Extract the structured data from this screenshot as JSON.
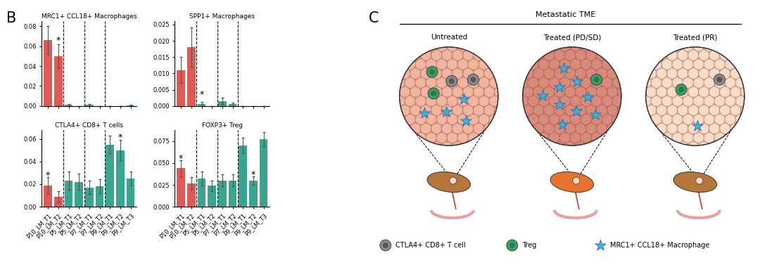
{
  "panel_labels": [
    "B",
    "C"
  ],
  "chart_data": [
    {
      "type": "bar",
      "title": "MRC1+ CCL18+ Macrophages",
      "categories": [
        "P10_LM_T1",
        "P10_LM_T2",
        "P5_LM_T1",
        "P5_LM_T2",
        "P7_LM_T1",
        "P7_LM_T2",
        "P9_LM_T1",
        "P9_LM_T2",
        "P9_LM_T3"
      ],
      "values": [
        0.066,
        0.05,
        0.001,
        0.0,
        0.001,
        0.0,
        0.0,
        0.0,
        0.0005
      ],
      "errors": [
        0.014,
        0.012,
        0.0008,
        0.0,
        0.0008,
        0.0,
        0.0,
        0.0,
        0.0005
      ],
      "colors": [
        "#e05a55",
        "#e05a55",
        "#3aa58f",
        "#3aa58f",
        "#3aa58f",
        "#3aa58f",
        "#3aa58f",
        "#3aa58f",
        "#3aa58f"
      ],
      "ylim": [
        0,
        0.085
      ],
      "yticks": [
        {
          "value": 0,
          "label": "0.00"
        },
        {
          "value": 0.02,
          "label": "0.02"
        },
        {
          "value": 0.04,
          "label": "0.04"
        },
        {
          "value": 0.06,
          "label": "0.06"
        },
        {
          "value": 0.08,
          "label": "0.08"
        }
      ],
      "annotations": [
        {
          "text": "*",
          "category": "P10_LM_T2",
          "y": 0.066
        }
      ],
      "tick_labels": "y"
    },
    {
      "type": "bar",
      "title": "SPP1+ Macrophages",
      "categories": [
        "P10_LM_T1",
        "P10_LM_T2",
        "P5_LM_T1",
        "P5_LM_T2",
        "P7_LM_T1",
        "P7_LM_T2",
        "P9_LM_T1",
        "P9_LM_T2",
        "P9_LM_T3"
      ],
      "values": [
        0.011,
        0.018,
        0.0005,
        0.0,
        0.0015,
        0.0005,
        0.0,
        0.0,
        0.0
      ],
      "errors": [
        0.004,
        0.006,
        0.0008,
        0.0,
        0.001,
        0.0005,
        0.0,
        0.0,
        0.0
      ],
      "colors": [
        "#e05a55",
        "#e05a55",
        "#3aa58f",
        "#3aa58f",
        "#3aa58f",
        "#3aa58f",
        "#3aa58f",
        "#3aa58f",
        "#3aa58f"
      ],
      "ylim": [
        0,
        0.026
      ],
      "yticks": [
        {
          "value": 0,
          "label": "0.000"
        },
        {
          "value": 0.005,
          "label": "0.005"
        },
        {
          "value": 0.01,
          "label": "0.010"
        },
        {
          "value": 0.015,
          "label": "0.015"
        },
        {
          "value": 0.02,
          "label": "0.020"
        },
        {
          "value": 0.025,
          "label": "0.025"
        }
      ],
      "annotations": [
        {
          "text": "*",
          "category": "P5_LM_T1",
          "y": 0.0035
        }
      ],
      "tick_labels": "y"
    },
    {
      "type": "bar",
      "title": "CTLA4+ CD8+ T cells",
      "categories": [
        "P10_LM_T1",
        "P10_LM_T2",
        "P5_LM_T1",
        "P5_LM_T2",
        "P7_LM_T1",
        "P7_LM_T2",
        "P9_LM_T1",
        "P9_LM_T2",
        "P9_LM_T3"
      ],
      "values": [
        0.019,
        0.009,
        0.023,
        0.022,
        0.017,
        0.018,
        0.055,
        0.05,
        0.025
      ],
      "errors": [
        0.007,
        0.005,
        0.008,
        0.007,
        0.006,
        0.006,
        0.008,
        0.009,
        0.006
      ],
      "colors": [
        "#e05a55",
        "#e05a55",
        "#3aa58f",
        "#3aa58f",
        "#3aa58f",
        "#3aa58f",
        "#3aa58f",
        "#3aa58f",
        "#3aa58f"
      ],
      "ylim": [
        0,
        0.068
      ],
      "yticks": [
        {
          "value": 0,
          "label": "0.00"
        },
        {
          "value": 0.02,
          "label": "0.02"
        },
        {
          "value": 0.04,
          "label": "0.04"
        },
        {
          "value": 0.06,
          "label": "0.06"
        }
      ],
      "annotations": [
        {
          "text": "*",
          "category": "P10_LM_T1",
          "y": 0.028
        },
        {
          "text": "*",
          "category": "P9_LM_T2",
          "y": 0.061
        }
      ]
    },
    {
      "type": "bar",
      "title": "FOXP3+ Treg",
      "categories": [
        "P10_LM_T1",
        "P10_LM_T2",
        "P5_LM_T1",
        "P5_LM_T2",
        "P7_LM_T1",
        "P7_LM_T2",
        "P9_LM_T1",
        "P9_LM_T2",
        "P9_LM_T3"
      ],
      "values": [
        0.044,
        0.027,
        0.032,
        0.024,
        0.03,
        0.03,
        0.07,
        0.03,
        0.077
      ],
      "errors": [
        0.009,
        0.007,
        0.008,
        0.006,
        0.007,
        0.007,
        0.009,
        0.005,
        0.008
      ],
      "colors": [
        "#e05a55",
        "#e05a55",
        "#3aa58f",
        "#3aa58f",
        "#3aa58f",
        "#3aa58f",
        "#3aa58f",
        "#3aa58f",
        "#3aa58f"
      ],
      "ylim": [
        0,
        0.088
      ],
      "yticks": [
        {
          "value": 0,
          "label": "0.000"
        },
        {
          "value": 0.025,
          "label": "0.025"
        },
        {
          "value": 0.05,
          "label": "0.050"
        },
        {
          "value": 0.075,
          "label": "0.075"
        }
      ],
      "annotations": [
        {
          "text": "*",
          "category": "P10_LM_T1",
          "y": 0.055
        },
        {
          "text": "*",
          "category": "P9_LM_T2",
          "y": 0.037
        }
      ]
    }
  ],
  "diagram": {
    "title": "Metastatic TME",
    "conditions": [
      {
        "label": "Untreated",
        "tissue_color": "#f2b5a0",
        "organ_color": "#b5763c",
        "cells": {
          "CTLA4+ CD8+ T cell": 2,
          "Treg": 2,
          "MRC1+ CCL18+ Macrophage": 4
        }
      },
      {
        "label": "Treated (PD/SD)",
        "tissue_color": "#d98a7a",
        "organ_color": "#e8732f",
        "cells": {
          "CTLA4+ CD8+ T cell": 0,
          "Treg": 1,
          "MRC1+ CCL18+ Macrophage": 9
        }
      },
      {
        "label": "Treated (PR)",
        "tissue_color": "#f8dcc8",
        "organ_color": "#b5763c",
        "cells": {
          "CTLA4+ CD8+ T cell": 1,
          "Treg": 1,
          "MRC1+ CCL18+ Macrophage": 1
        }
      }
    ],
    "legend": [
      {
        "label": "CTLA4+ CD8+ T cell",
        "color": "#8c8c8c"
      },
      {
        "label": "Treg",
        "color": "#3aa06a"
      },
      {
        "label": "MRC1+ CCL18+ Macrophage",
        "color": "#3fb0e0"
      }
    ]
  }
}
